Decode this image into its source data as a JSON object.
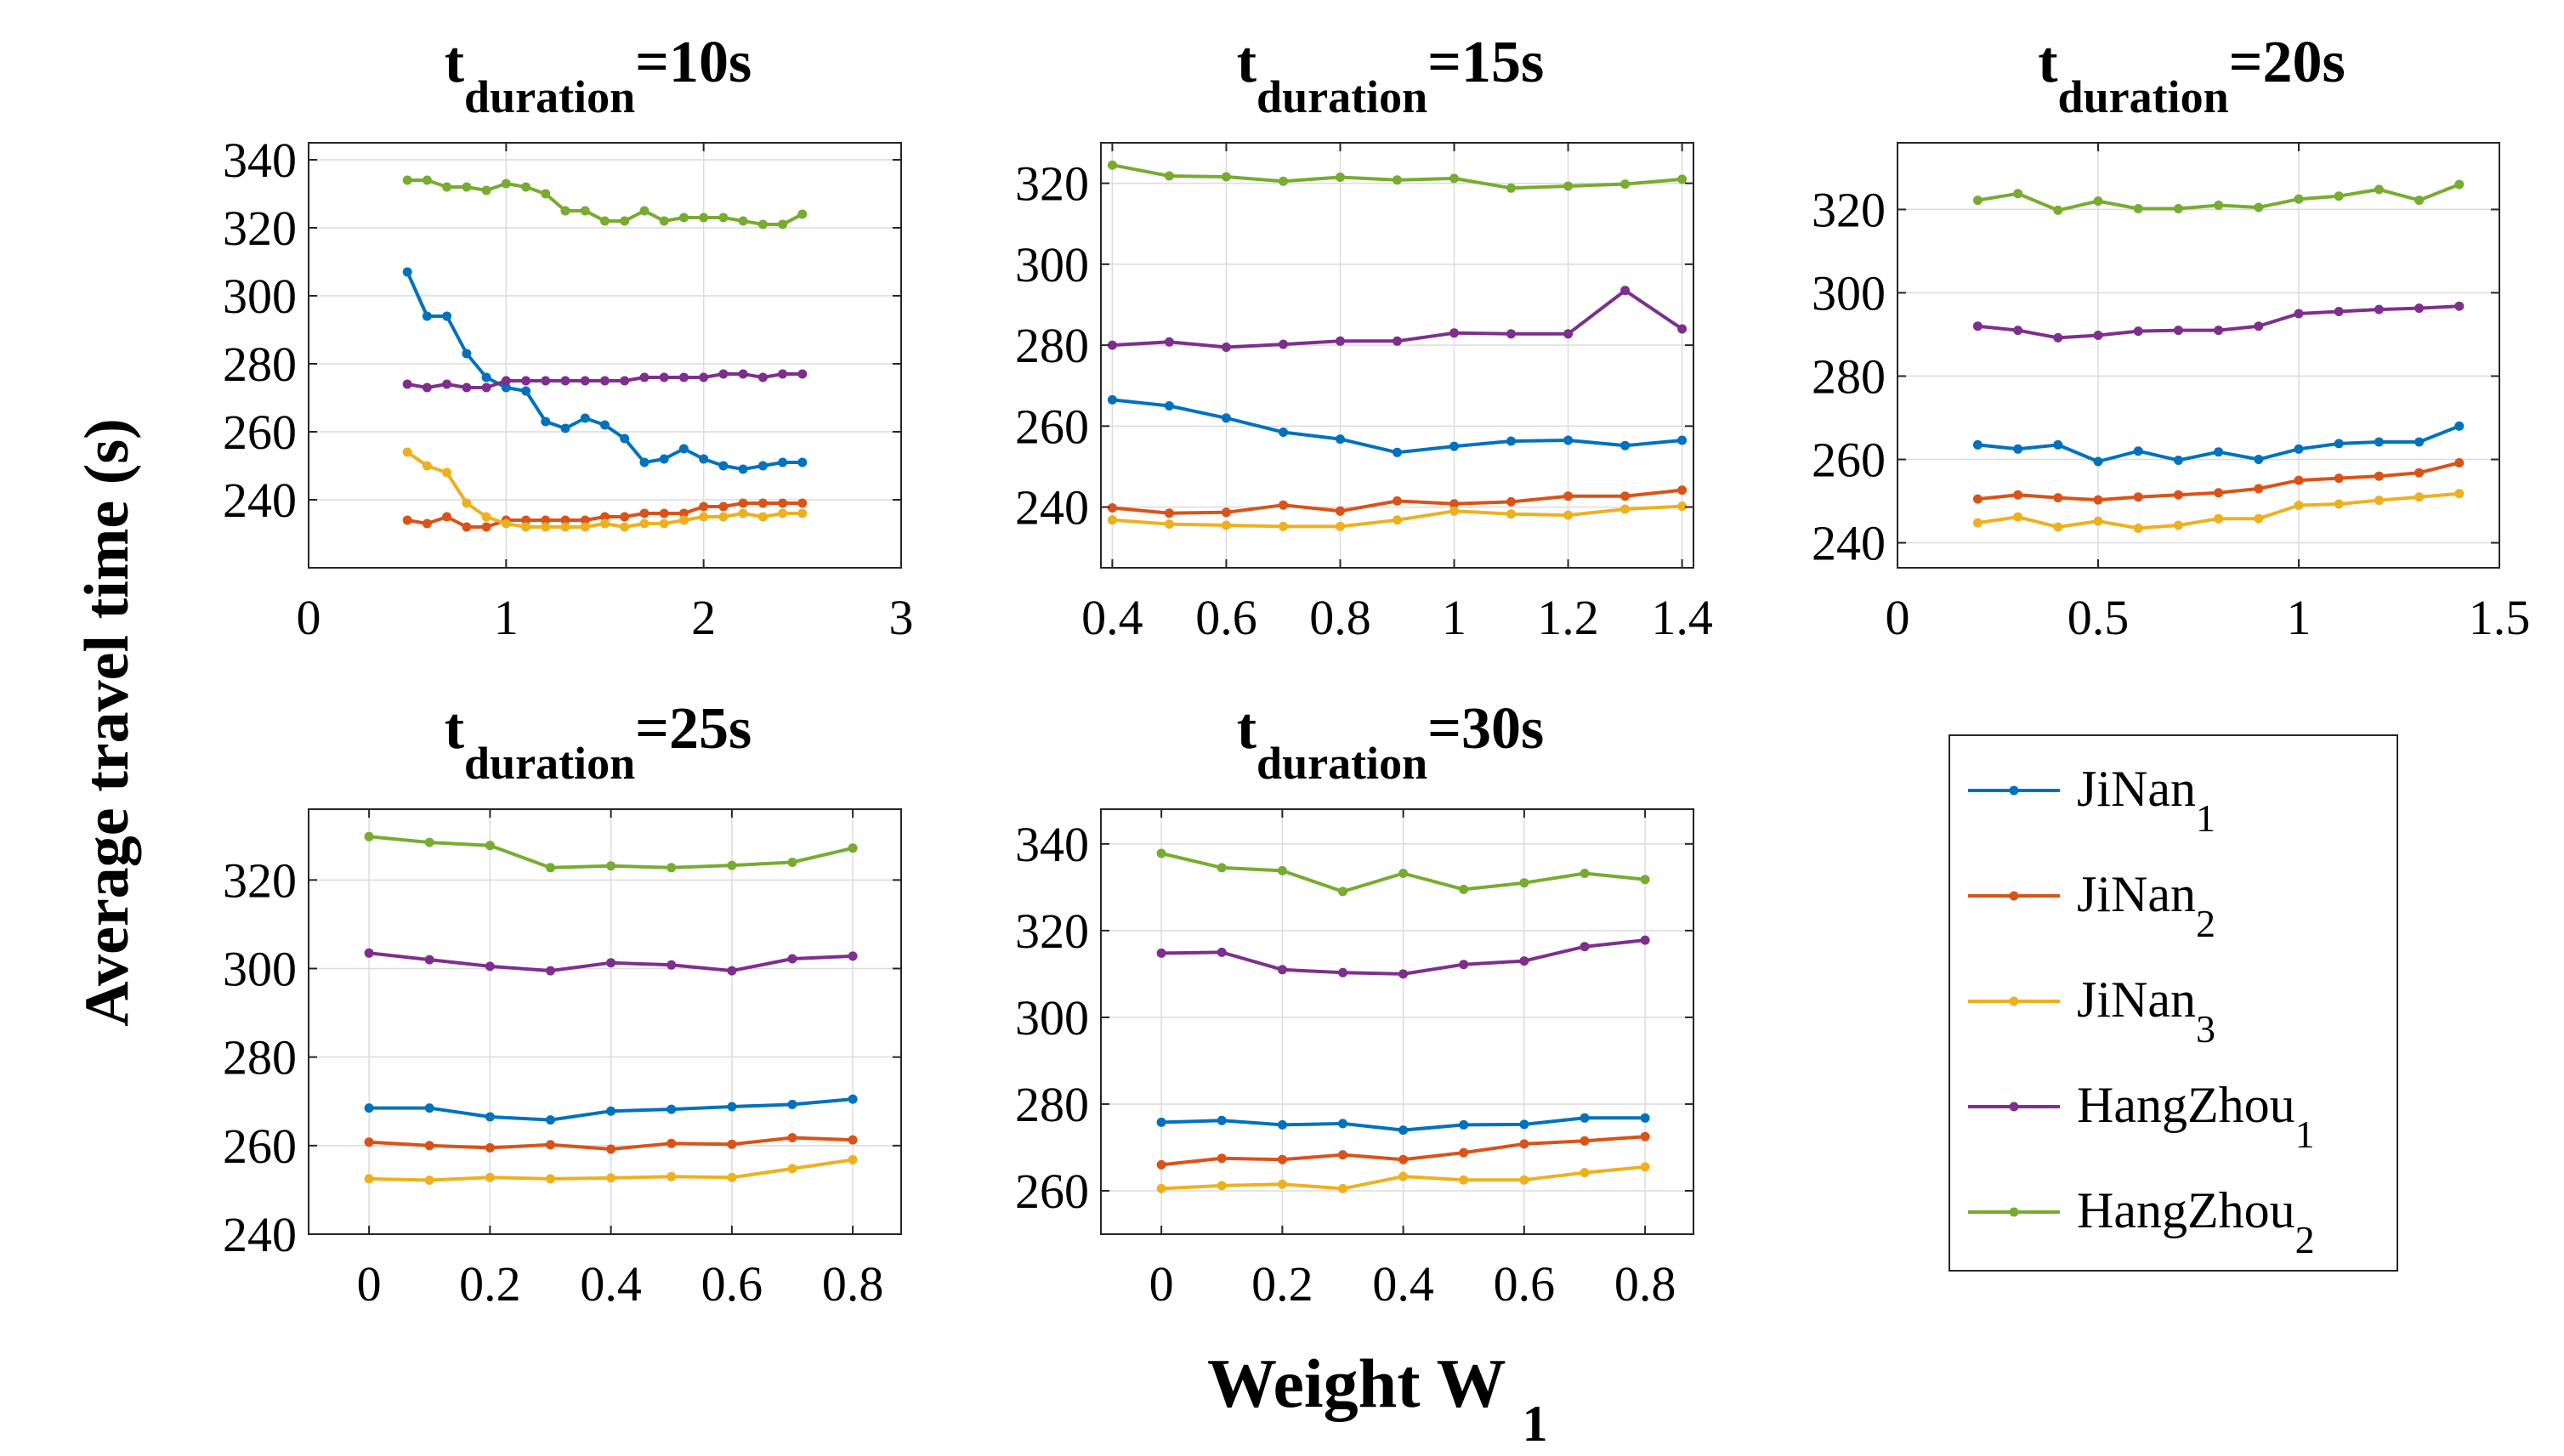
{
  "figure": {
    "ylabel": "Average travel time (s)",
    "xlabel_main": "Weight W",
    "xlabel_sub": "1"
  },
  "legend": {
    "placement": "bottom-right",
    "entries": [
      {
        "base": "JiNan",
        "sub": "1",
        "color": "#0072BD"
      },
      {
        "base": "JiNan",
        "sub": "2",
        "color": "#D95319"
      },
      {
        "base": "JiNan",
        "sub": "3",
        "color": "#EDB120"
      },
      {
        "base": "HangZhou",
        "sub": "1",
        "color": "#7E2F8E"
      },
      {
        "base": "HangZhou",
        "sub": "2",
        "color": "#77AC30"
      }
    ]
  },
  "chart_data": [
    {
      "type": "line",
      "title_base": "t",
      "title_sub": "duration",
      "title_suffix": "=10s",
      "xlim": [
        0,
        3
      ],
      "ylim": [
        220,
        345
      ],
      "xticks": [
        0,
        1,
        2,
        3
      ],
      "xtick_labels": [
        "0",
        "1",
        "2",
        "3"
      ],
      "yticks": [
        240,
        260,
        280,
        300,
        320,
        340
      ],
      "ytick_labels": [
        "240",
        "260",
        "280",
        "300",
        "320",
        "340"
      ],
      "grid": true,
      "x": [
        0.5,
        0.6,
        0.7,
        0.8,
        0.9,
        1.0,
        1.1,
        1.2,
        1.3,
        1.4,
        1.5,
        1.6,
        1.7,
        1.8,
        1.9,
        2.0,
        2.1,
        2.2,
        2.3,
        2.4,
        2.5
      ],
      "series": [
        {
          "name": "JiNan1",
          "values": [
            307,
            294,
            294,
            283,
            276,
            273,
            272,
            263,
            261,
            264,
            262,
            258,
            251,
            252,
            255,
            252,
            250,
            249,
            250,
            251,
            251
          ]
        },
        {
          "name": "JiNan2",
          "values": [
            234,
            233,
            235,
            232,
            232,
            234,
            234,
            234,
            234,
            234,
            235,
            235,
            236,
            236,
            236,
            238,
            238,
            239,
            239,
            239,
            239
          ]
        },
        {
          "name": "JiNan3",
          "values": [
            254,
            250,
            248,
            239,
            235,
            233,
            232,
            232,
            232,
            232,
            233,
            232,
            233,
            233,
            234,
            235,
            235,
            236,
            235,
            236,
            236
          ]
        },
        {
          "name": "HangZhou1",
          "values": [
            274,
            273,
            274,
            273,
            273,
            275,
            275,
            275,
            275,
            275,
            275,
            275,
            276,
            276,
            276,
            276,
            277,
            277,
            276,
            277,
            277
          ]
        },
        {
          "name": "HangZhou2",
          "values": [
            334,
            334,
            332,
            332,
            331,
            333,
            332,
            330,
            325,
            325,
            322,
            322,
            325,
            322,
            323,
            323,
            323,
            322,
            321,
            321,
            324
          ]
        }
      ]
    },
    {
      "type": "line",
      "title_base": "t",
      "title_sub": "duration",
      "title_suffix": "=15s",
      "xlim": [
        0.38,
        1.42
      ],
      "ylim": [
        225,
        330
      ],
      "xticks": [
        0.4,
        0.6,
        0.8,
        1.0,
        1.2,
        1.4
      ],
      "xtick_labels": [
        "0.4",
        "0.6",
        "0.8",
        "1",
        "1.2",
        "1.4"
      ],
      "yticks": [
        240,
        260,
        280,
        300,
        320
      ],
      "ytick_labels": [
        "240",
        "260",
        "280",
        "300",
        "320"
      ],
      "grid": true,
      "x": [
        0.4,
        0.5,
        0.6,
        0.7,
        0.8,
        0.9,
        1.0,
        1.1,
        1.2,
        1.3,
        1.4
      ],
      "series": [
        {
          "name": "JiNan1",
          "values": [
            266.5,
            265,
            262,
            258.5,
            256.8,
            253.5,
            255,
            256.3,
            256.5,
            255.2,
            256.5
          ]
        },
        {
          "name": "JiNan2",
          "values": [
            239.8,
            238.5,
            238.7,
            240.5,
            239,
            241.5,
            240.8,
            241.3,
            242.7,
            242.7,
            244.2
          ]
        },
        {
          "name": "JiNan3",
          "values": [
            236.8,
            235.8,
            235.5,
            235.2,
            235.2,
            236.8,
            239,
            238.3,
            238,
            239.5,
            240.2
          ]
        },
        {
          "name": "HangZhou1",
          "values": [
            280,
            280.8,
            279.5,
            280.2,
            281,
            281,
            283,
            282.8,
            282.8,
            293.5,
            284
          ]
        },
        {
          "name": "HangZhou2",
          "values": [
            324.5,
            321.8,
            321.6,
            320.5,
            321.5,
            320.8,
            321.2,
            318.8,
            319.3,
            319.8,
            321
          ]
        }
      ]
    },
    {
      "type": "line",
      "title_base": "t",
      "title_sub": "duration",
      "title_suffix": "=20s",
      "xlim": [
        0,
        1.5
      ],
      "ylim": [
        234,
        336
      ],
      "xticks": [
        0,
        0.5,
        1.0,
        1.5
      ],
      "xtick_labels": [
        "0",
        "0.5",
        "1",
        "1.5"
      ],
      "yticks": [
        240,
        260,
        280,
        300,
        320
      ],
      "ytick_labels": [
        "240",
        "260",
        "280",
        "300",
        "320"
      ],
      "grid": true,
      "x": [
        0.2,
        0.3,
        0.4,
        0.5,
        0.6,
        0.7,
        0.8,
        0.9,
        1.0,
        1.1,
        1.2,
        1.3,
        1.4
      ],
      "series": [
        {
          "name": "JiNan1",
          "values": [
            263.5,
            262.5,
            263.5,
            259.5,
            262,
            259.8,
            261.8,
            260,
            262.5,
            263.8,
            264.2,
            264.2,
            268
          ]
        },
        {
          "name": "JiNan2",
          "values": [
            250.5,
            251.5,
            250.8,
            250.3,
            251,
            251.5,
            252,
            253,
            255,
            255.5,
            256,
            256.8,
            259.2
          ]
        },
        {
          "name": "JiNan3",
          "values": [
            244.8,
            246.2,
            243.8,
            245.2,
            243.5,
            244.2,
            245.8,
            245.8,
            249,
            249.3,
            250.2,
            251,
            251.8
          ]
        },
        {
          "name": "HangZhou1",
          "values": [
            292,
            291,
            289.2,
            289.8,
            290.8,
            291,
            291,
            292,
            295,
            295.5,
            296,
            296.3,
            296.8
          ]
        },
        {
          "name": "HangZhou2",
          "values": [
            322.2,
            323.8,
            319.8,
            322,
            320.2,
            320.2,
            321,
            320.5,
            322.5,
            323.2,
            324.8,
            322.2,
            326
          ]
        }
      ]
    },
    {
      "type": "line",
      "title_base": "t",
      "title_sub": "duration",
      "title_suffix": "=25s",
      "xlim": [
        -0.1,
        0.88
      ],
      "ylim": [
        240,
        336
      ],
      "xticks": [
        0,
        0.2,
        0.4,
        0.6,
        0.8
      ],
      "xtick_labels": [
        "0",
        "0.2",
        "0.4",
        "0.6",
        "0.8"
      ],
      "yticks": [
        240,
        260,
        280,
        300,
        320
      ],
      "ytick_labels": [
        "240",
        "260",
        "280",
        "300",
        "320"
      ],
      "grid": true,
      "x": [
        0,
        0.1,
        0.2,
        0.3,
        0.4,
        0.5,
        0.6,
        0.7,
        0.8
      ],
      "series": [
        {
          "name": "JiNan1",
          "values": [
            268.5,
            268.5,
            266.5,
            265.8,
            267.8,
            268.2,
            268.8,
            269.3,
            270.5
          ]
        },
        {
          "name": "JiNan2",
          "values": [
            260.8,
            260,
            259.5,
            260.2,
            259.2,
            260.5,
            260.3,
            261.8,
            261.3
          ]
        },
        {
          "name": "JiNan3",
          "values": [
            252.5,
            252.2,
            252.8,
            252.5,
            252.7,
            253,
            252.8,
            254.8,
            256.8
          ]
        },
        {
          "name": "HangZhou1",
          "values": [
            303.5,
            302,
            300.5,
            299.5,
            301.3,
            300.8,
            299.5,
            302.2,
            302.8
          ]
        },
        {
          "name": "HangZhou2",
          "values": [
            329.8,
            328.5,
            327.8,
            322.8,
            323.2,
            322.8,
            323.3,
            324,
            327.2
          ]
        }
      ]
    },
    {
      "type": "line",
      "title_base": "t",
      "title_sub": "duration",
      "title_suffix": "=30s",
      "xlim": [
        -0.1,
        0.88
      ],
      "ylim": [
        250,
        348
      ],
      "xticks": [
        0,
        0.2,
        0.4,
        0.6,
        0.8
      ],
      "xtick_labels": [
        "0",
        "0.2",
        "0.4",
        "0.6",
        "0.8"
      ],
      "yticks": [
        260,
        280,
        300,
        320,
        340
      ],
      "ytick_labels": [
        "260",
        "280",
        "300",
        "320",
        "340"
      ],
      "grid": true,
      "x": [
        0,
        0.1,
        0.2,
        0.3,
        0.4,
        0.5,
        0.6,
        0.7,
        0.8
      ],
      "series": [
        {
          "name": "JiNan1",
          "values": [
            275.8,
            276.2,
            275.2,
            275.5,
            274,
            275.2,
            275.3,
            276.8,
            276.8
          ]
        },
        {
          "name": "JiNan2",
          "values": [
            266,
            267.5,
            267.2,
            268.3,
            267.2,
            268.8,
            270.8,
            271.5,
            272.5
          ]
        },
        {
          "name": "JiNan3",
          "values": [
            260.5,
            261.2,
            261.5,
            260.5,
            263.3,
            262.5,
            262.5,
            264.2,
            265.5
          ]
        },
        {
          "name": "HangZhou1",
          "values": [
            314.8,
            315,
            311,
            310.3,
            310,
            312.2,
            313,
            316.3,
            317.8
          ]
        },
        {
          "name": "HangZhou2",
          "values": [
            337.8,
            334.5,
            333.8,
            329,
            333.2,
            329.5,
            331,
            333.2,
            331.8
          ]
        }
      ]
    }
  ]
}
